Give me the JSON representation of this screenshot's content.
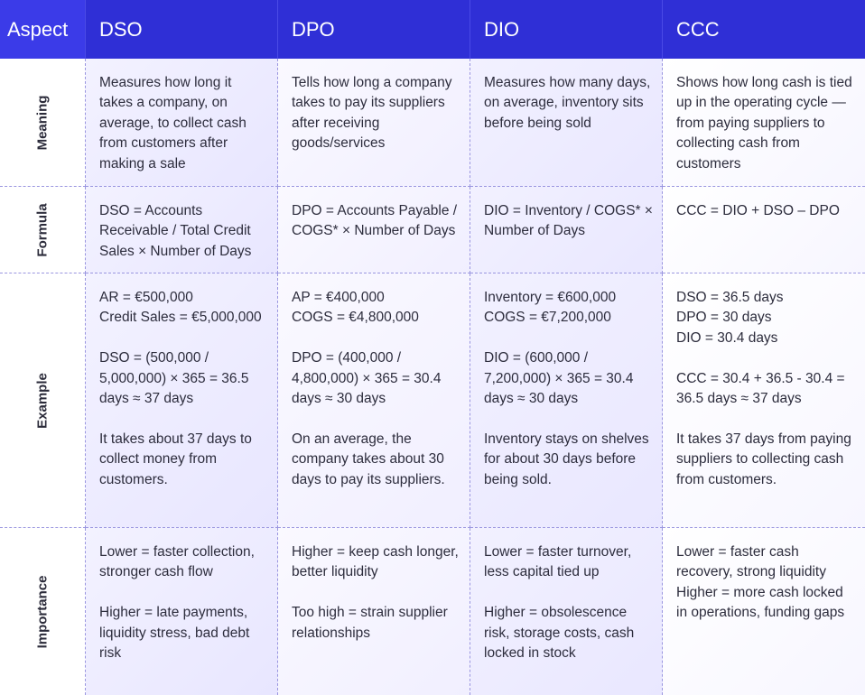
{
  "header": {
    "aspect": "Aspect",
    "columns": [
      "DSO",
      "DPO",
      "DIO",
      "CCC"
    ]
  },
  "rows": [
    {
      "label": "Meaning",
      "cells": [
        "Measures how long it takes a company, on average, to collect cash from customers after making a sale",
        "Tells how long a company takes to pay its suppliers after receiving goods/services",
        "Measures how many days, on average, inventory sits before being sold",
        "Shows how long cash is tied up in the operating cycle — from paying suppliers to collecting cash from customers"
      ]
    },
    {
      "label": "Formula",
      "cells": [
        "DSO = Accounts Receivable / Total Credit Sales × Number of Days",
        "DPO = Accounts Payable / COGS* × Number of Days",
        "DIO = Inventory / COGS* × Number of Days",
        "CCC = DIO + DSO – DPO"
      ]
    },
    {
      "label": "Example",
      "cells": [
        "AR = €500,000\nCredit Sales = €5,000,000\n\nDSO = (500,000 / 5,000,000) × 365 = 36.5 days ≈ 37 days\n\nIt takes about 37 days to collect money from customers.",
        "AP = €400,000\nCOGS = €4,800,000\n\nDPO = (400,000 / 4,800,000) × 365 = 30.4 days ≈ 30 days\n\nOn an average, the company takes about 30 days to pay its suppliers.",
        "Inventory = €600,000\nCOGS = €7,200,000\n\nDIO = (600,000 / 7,200,000) × 365 = 30.4 days ≈ 30 days\n\nInventory stays on shelves for about 30 days before being sold.",
        "DSO = 36.5 days\nDPO = 30 days\nDIO = 30.4 days\n\nCCC = 30.4 + 36.5 - 30.4 = 36.5 days ≈ 37 days\n\n It takes 37 days from paying suppliers to collecting cash from customers."
      ]
    },
    {
      "label": "Importance",
      "cells": [
        "Lower = faster collection, stronger cash flow\n\nHigher = late payments, liquidity stress, bad debt risk",
        "Higher = keep cash longer, better liquidity\n\nToo high = strain supplier relationships",
        "Lower = faster turnover, less capital tied up\n\nHigher = obsolescence risk, storage costs, cash locked in stock",
        "Lower = faster cash recovery, strong liquidity\n Higher = more cash locked in operations, funding gaps"
      ]
    }
  ]
}
